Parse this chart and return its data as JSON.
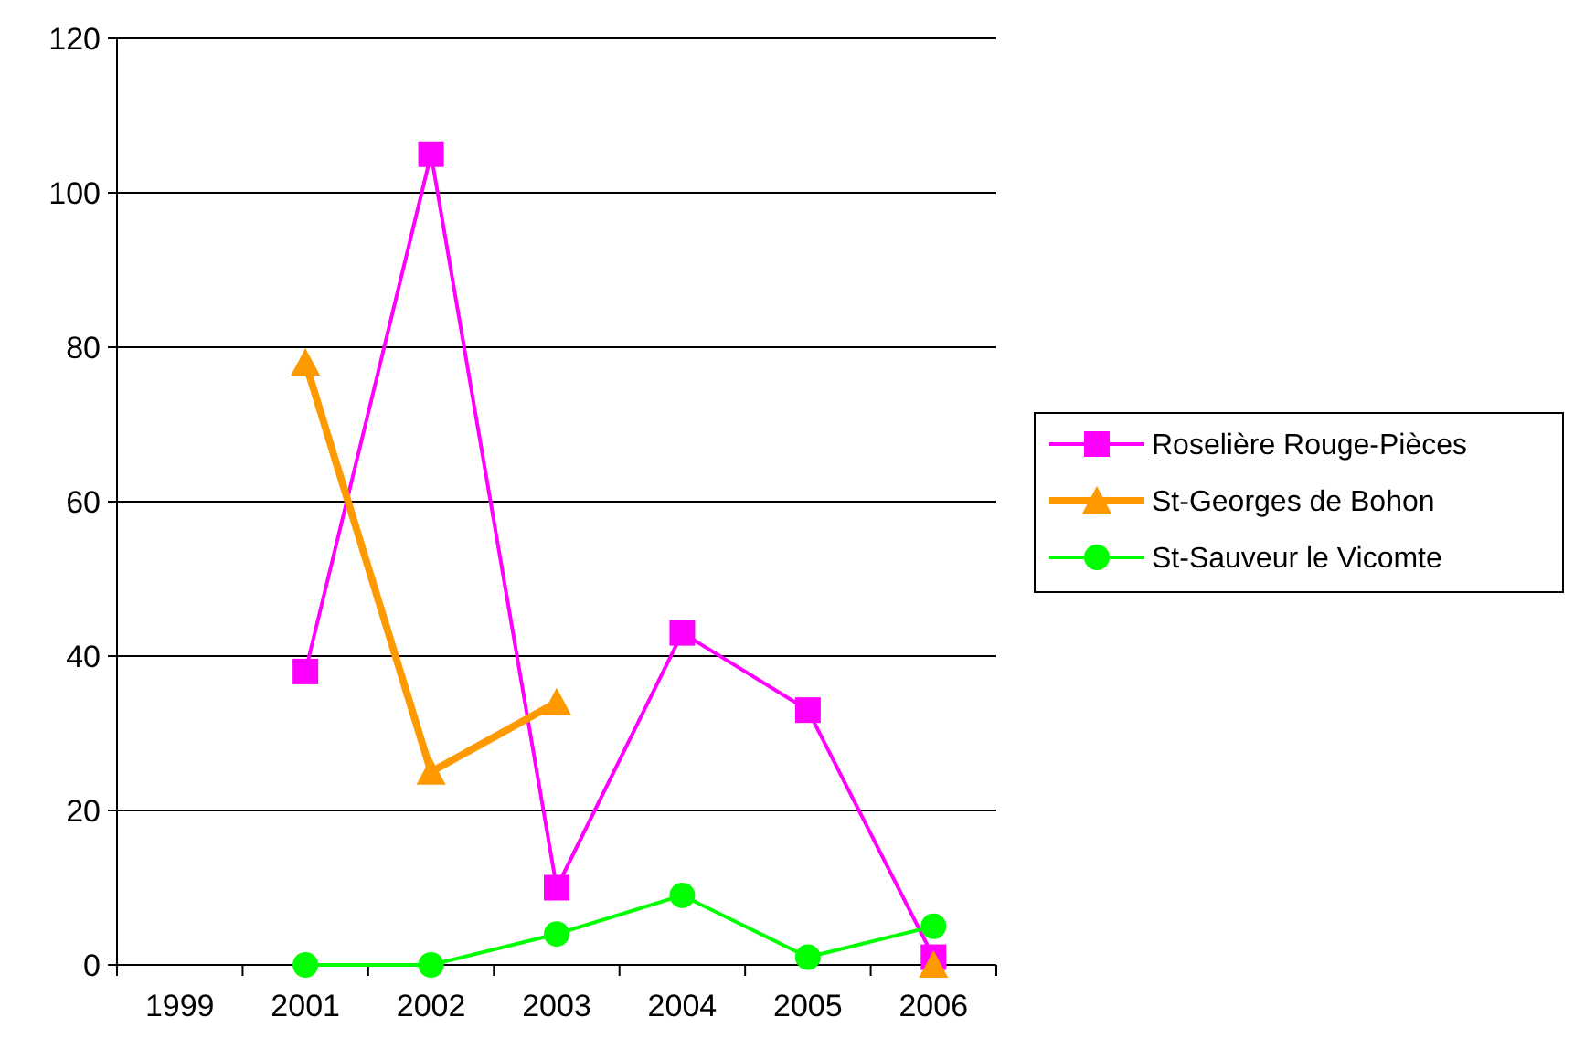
{
  "chart_data": {
    "type": "line",
    "categories": [
      "1999",
      "2001",
      "2002",
      "2003",
      "2004",
      "2005",
      "2006"
    ],
    "series": [
      {
        "name": "Roselière Rouge-Pièces",
        "color": "#ff00ff",
        "marker": "square",
        "values": [
          null,
          38,
          105,
          10,
          43,
          33,
          1
        ]
      },
      {
        "name": "St-Georges de Bohon",
        "color": "#ff9900",
        "marker": "triangle",
        "values": [
          null,
          78,
          25,
          34,
          null,
          null,
          0
        ]
      },
      {
        "name": "St-Sauveur le Vicomte",
        "color": "#00ff00",
        "marker": "circle",
        "values": [
          null,
          0,
          0,
          4,
          9,
          1,
          5
        ]
      }
    ],
    "ylim": [
      0,
      120
    ],
    "yticks": [
      0,
      20,
      40,
      60,
      80,
      100,
      120
    ],
    "grid": "y",
    "legend": "right",
    "line_style": "solid"
  }
}
